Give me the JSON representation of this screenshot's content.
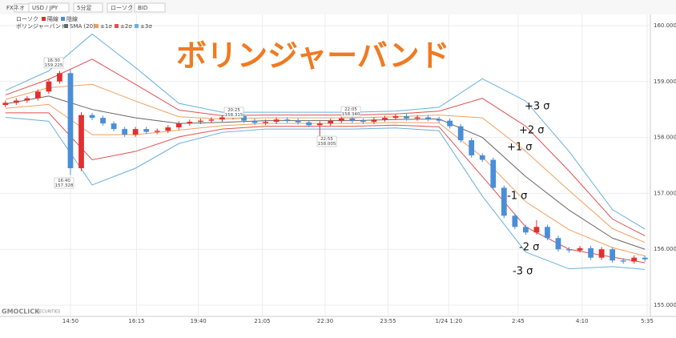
{
  "toolbar": {
    "product": "FXネオ",
    "pair": "USD / JPY",
    "interval": "5分足",
    "style": "ローソク",
    "side": "BID"
  },
  "chart_data": {
    "type": "candlestick",
    "title": "ボリンジャーバンド",
    "legend": {
      "candle": "ローソク",
      "up": "陽線",
      "down": "陰線",
      "bands": "ボリンジャーバンド",
      "sma": "SMA (20)",
      "s1": "±1σ",
      "s2": "±2σ",
      "s3": "±3σ"
    },
    "logo": {
      "name": "GMOCLICK",
      "sub": "SECURITIES"
    },
    "up_color": "#e03030",
    "down_color": "#4a8ed8",
    "open": [
      158.58,
      158.62,
      158.66,
      158.7,
      158.82,
      159.0,
      159.15,
      157.45,
      158.4,
      158.35,
      158.25,
      158.15,
      158.05,
      158.15,
      158.1,
      158.12,
      158.18,
      158.25,
      158.28,
      158.3,
      158.32,
      158.36,
      158.38,
      158.3,
      158.26,
      158.28,
      158.32,
      158.3,
      158.27,
      158.22,
      158.25,
      158.3,
      158.34,
      158.3,
      158.28,
      158.32,
      158.35,
      158.38,
      158.34,
      158.36,
      158.33,
      158.3,
      158.2,
      157.95,
      157.68,
      157.6,
      157.1,
      156.6,
      156.4,
      156.3,
      156.4,
      156.2,
      156.0,
      155.98,
      156.02,
      155.85,
      156.0,
      155.8,
      155.78,
      155.85
    ],
    "high": [
      158.66,
      158.7,
      158.74,
      158.86,
      159.04,
      159.19,
      159.225,
      158.45,
      158.44,
      158.39,
      158.29,
      158.19,
      158.19,
      158.19,
      158.16,
      158.22,
      158.29,
      158.32,
      158.34,
      158.36,
      158.4,
      158.42,
      158.42,
      158.34,
      158.32,
      158.36,
      158.36,
      158.34,
      158.31,
      158.29,
      158.34,
      158.38,
      158.38,
      158.34,
      158.36,
      158.39,
      158.42,
      158.42,
      158.4,
      158.4,
      158.37,
      158.34,
      158.24,
      157.99,
      157.72,
      157.64,
      157.14,
      156.64,
      156.44,
      156.52,
      156.44,
      156.24,
      156.04,
      156.06,
      156.06,
      156.04,
      156.04,
      155.84,
      155.89,
      155.89
    ],
    "low": [
      158.54,
      158.58,
      158.62,
      158.66,
      158.78,
      158.96,
      157.328,
      157.4,
      158.31,
      158.21,
      158.11,
      158.01,
      158.01,
      158.06,
      158.06,
      158.08,
      158.14,
      158.21,
      158.24,
      158.26,
      158.28,
      158.32,
      158.26,
      158.22,
      158.22,
      158.24,
      158.26,
      158.23,
      158.18,
      158.005,
      158.21,
      158.26,
      158.26,
      158.24,
      158.24,
      158.28,
      158.31,
      158.3,
      158.3,
      158.29,
      158.26,
      158.16,
      157.91,
      157.64,
      157.56,
      157.06,
      156.56,
      156.36,
      156.26,
      156.26,
      156.16,
      155.96,
      155.94,
      155.94,
      155.81,
      155.81,
      155.76,
      155.74,
      155.74,
      155.78
    ],
    "close": [
      158.62,
      158.66,
      158.7,
      158.82,
      159.0,
      159.15,
      157.45,
      158.4,
      158.35,
      158.25,
      158.15,
      158.05,
      158.15,
      158.1,
      158.12,
      158.18,
      158.25,
      158.28,
      158.3,
      158.32,
      158.36,
      158.38,
      158.3,
      158.26,
      158.28,
      158.32,
      158.3,
      158.27,
      158.22,
      158.25,
      158.3,
      158.34,
      158.3,
      158.28,
      158.32,
      158.35,
      158.38,
      158.34,
      158.36,
      158.33,
      158.3,
      158.2,
      157.95,
      157.68,
      157.6,
      157.1,
      156.6,
      156.4,
      156.3,
      156.4,
      156.2,
      156.0,
      155.98,
      156.02,
      155.85,
      156.0,
      155.8,
      155.78,
      155.85,
      155.82
    ],
    "xlim": [
      0,
      60
    ],
    "xticks": [
      {
        "value": 6.5,
        "label": "14:50"
      },
      {
        "value": 12.6,
        "label": "16:15"
      },
      {
        "value": 18.3,
        "label": "19:40"
      },
      {
        "value": 24.2,
        "label": "21:05"
      },
      {
        "value": 30,
        "label": "22:30"
      },
      {
        "value": 35.8,
        "label": "23:55"
      },
      {
        "value": 41.4,
        "label": "1/24 1:20"
      },
      {
        "value": 47.8,
        "label": "2:45"
      },
      {
        "value": 53.7,
        "label": "4:10"
      },
      {
        "value": 59.7,
        "label": "5:35"
      }
    ],
    "ylim": [
      154.8,
      160.2
    ],
    "yticks": [
      {
        "value": 155,
        "label": "155.000"
      },
      {
        "value": 156,
        "label": "156.000"
      },
      {
        "value": 157,
        "label": "157.000"
      },
      {
        "value": 158,
        "label": "158.000"
      },
      {
        "value": 159,
        "label": "159.000"
      },
      {
        "value": 160,
        "label": "160.000"
      }
    ],
    "grid": true,
    "bands": {
      "x": [
        0.5,
        4.5,
        8.5,
        12.5,
        16.5,
        20.5,
        24.5,
        28.5,
        32.5,
        36.5,
        40.5,
        44.5,
        48.5,
        52.5,
        56.5,
        59.5
      ],
      "series": [
        {
          "name": "+3 σ",
          "color": "#6ab0e0",
          "values": [
            158.84,
            159.19,
            159.85,
            159.25,
            158.61,
            158.45,
            158.45,
            158.45,
            158.45,
            158.47,
            158.54,
            159.05,
            158.65,
            157.75,
            156.71,
            156.36
          ]
        },
        {
          "name": "+2 σ",
          "color": "#e05050",
          "values": [
            158.76,
            159.04,
            159.4,
            158.95,
            158.49,
            158.39,
            158.4,
            158.4,
            158.4,
            158.42,
            158.47,
            158.7,
            158.2,
            157.4,
            156.54,
            156.24
          ]
        },
        {
          "name": "+1 σ",
          "color": "#f0a060",
          "values": [
            158.68,
            158.89,
            158.95,
            158.65,
            158.37,
            158.33,
            158.35,
            158.35,
            158.35,
            158.37,
            158.4,
            158.35,
            157.75,
            157.05,
            156.37,
            156.12
          ]
        },
        {
          "name": "SMA (20)",
          "color": "#666666",
          "values": [
            158.6,
            158.74,
            158.5,
            158.35,
            158.25,
            158.27,
            158.3,
            158.3,
            158.3,
            158.32,
            158.33,
            158.0,
            157.3,
            156.7,
            156.2,
            156.0
          ]
        },
        {
          "name": "-1 σ",
          "color": "#f0a060",
          "values": [
            158.52,
            158.59,
            158.05,
            158.05,
            158.13,
            158.21,
            158.25,
            158.25,
            158.25,
            158.27,
            158.26,
            157.65,
            156.85,
            156.35,
            156.03,
            155.88
          ]
        },
        {
          "name": "-2 σ",
          "color": "#e05050",
          "values": [
            158.44,
            158.44,
            157.6,
            157.75,
            158.01,
            158.15,
            158.2,
            158.2,
            158.2,
            158.22,
            158.19,
            157.3,
            156.4,
            156.0,
            155.86,
            155.76
          ]
        },
        {
          "name": "-3 σ",
          "color": "#6ab0e0",
          "values": [
            158.36,
            158.29,
            157.15,
            157.45,
            157.89,
            158.09,
            158.15,
            158.15,
            158.15,
            158.17,
            158.12,
            156.95,
            155.95,
            155.65,
            155.69,
            155.64
          ]
        }
      ]
    },
    "annotations": [
      {
        "time": "16:30",
        "price": "159.225"
      },
      {
        "time": "16:40",
        "price": "157.328"
      },
      {
        "time": "20:25",
        "price": "158.315"
      },
      {
        "time": "22:55",
        "price": "158.005"
      },
      {
        "time": "22:05",
        "price": "158.340"
      }
    ]
  }
}
